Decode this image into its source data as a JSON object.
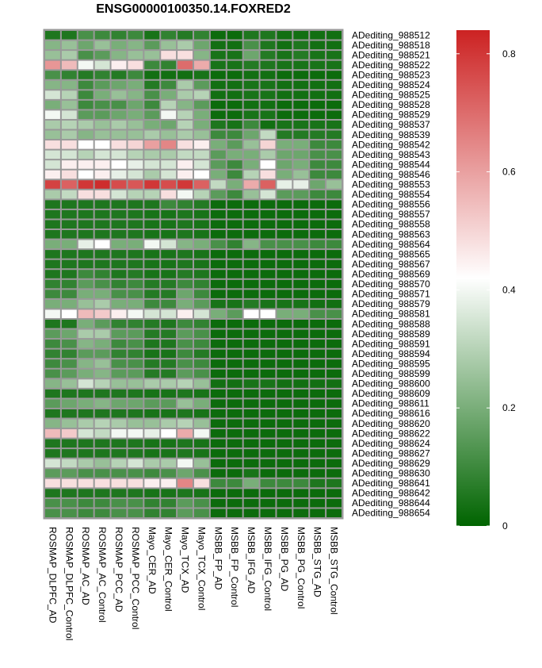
{
  "chart_data": {
    "type": "heatmap",
    "title": "ENSG00000100350.14.FOXRED2",
    "columns": [
      "ROSMAP_DLPFC_AD",
      "ROSMAP_DLPFC_Control",
      "ROSMAP_AC_AD",
      "ROSMAP_AC_Control",
      "ROSMAP_PCC_AD",
      "ROSMAP_PCC_Control",
      "Mayo_CER_AD",
      "Mayo_CER_Control",
      "Mayo_TCX_AD",
      "Mayo_TCX_Control",
      "MSBB_FP_AD",
      "MSBB_FP_Control",
      "MSBB_IFG_AD",
      "MSBB_IFG_Control",
      "MSBB_PG_AD",
      "MSBB_PG_Control",
      "MSBB_STG_AD",
      "MSBB_STG_Control"
    ],
    "rows": [
      "ADediting_988512",
      "ADediting_988518",
      "ADediting_988521",
      "ADediting_988522",
      "ADediting_988523",
      "ADediting_988524",
      "ADediting_988525",
      "ADediting_988528",
      "ADediting_988529",
      "ADediting_988537",
      "ADediting_988539",
      "ADediting_988542",
      "ADediting_988543",
      "ADediting_988544",
      "ADediting_988546",
      "ADediting_988553",
      "ADediting_988554",
      "ADediting_988556",
      "ADediting_988557",
      "ADediting_988558",
      "ADediting_988563",
      "ADediting_988564",
      "ADediting_988565",
      "ADediting_988567",
      "ADediting_988569",
      "ADediting_988570",
      "ADediting_988571",
      "ADediting_988579",
      "ADediting_988581",
      "ADediting_988588",
      "ADediting_988589",
      "ADediting_988591",
      "ADediting_988594",
      "ADediting_988595",
      "ADediting_988599",
      "ADediting_988600",
      "ADediting_988609",
      "ADediting_988611",
      "ADediting_988616",
      "ADediting_988620",
      "ADediting_988622",
      "ADediting_988624",
      "ADediting_988627",
      "ADediting_988629",
      "ADediting_988630",
      "ADediting_988641",
      "ADediting_988642",
      "ADediting_988644",
      "ADediting_988654"
    ],
    "values": [
      [
        0.05,
        0.05,
        0.12,
        0.1,
        0.08,
        0.1,
        0.04,
        0.08,
        0.06,
        0.08,
        0.02,
        0.02,
        0.05,
        0.05,
        0.03,
        0.03,
        0.03,
        0.03
      ],
      [
        0.22,
        0.25,
        0.18,
        0.25,
        0.2,
        0.22,
        0.15,
        0.25,
        0.28,
        0.18,
        0.03,
        0.03,
        0.12,
        0.05,
        0.03,
        0.05,
        0.03,
        0.03
      ],
      [
        0.25,
        0.28,
        0.12,
        0.15,
        0.22,
        0.25,
        0.25,
        0.48,
        0.48,
        0.22,
        0.04,
        0.04,
        0.18,
        0.06,
        0.04,
        0.06,
        0.04,
        0.04
      ],
      [
        0.62,
        0.55,
        0.4,
        0.35,
        0.45,
        0.48,
        0.1,
        0.08,
        0.7,
        0.58,
        0.04,
        0.04,
        0.06,
        0.05,
        0.04,
        0.04,
        0.04,
        0.04
      ],
      [
        0.12,
        0.08,
        0.06,
        0.08,
        0.06,
        0.1,
        0.03,
        0.03,
        0.03,
        0.04,
        0.02,
        0.02,
        0.03,
        0.03,
        0.02,
        0.02,
        0.02,
        0.02
      ],
      [
        0.22,
        0.22,
        0.1,
        0.15,
        0.18,
        0.2,
        0.06,
        0.1,
        0.28,
        0.15,
        0.03,
        0.03,
        0.04,
        0.04,
        0.03,
        0.03,
        0.03,
        0.03
      ],
      [
        0.35,
        0.3,
        0.1,
        0.2,
        0.25,
        0.22,
        0.12,
        0.2,
        0.28,
        0.3,
        0.03,
        0.03,
        0.04,
        0.04,
        0.03,
        0.03,
        0.03,
        0.03
      ],
      [
        0.2,
        0.25,
        0.1,
        0.12,
        0.12,
        0.18,
        0.1,
        0.3,
        0.22,
        0.15,
        0.02,
        0.02,
        0.03,
        0.03,
        0.02,
        0.02,
        0.02,
        0.02
      ],
      [
        0.4,
        0.35,
        0.15,
        0.15,
        0.18,
        0.2,
        0.15,
        0.4,
        0.3,
        0.2,
        0.02,
        0.02,
        0.04,
        0.04,
        0.02,
        0.02,
        0.02,
        0.02
      ],
      [
        0.28,
        0.3,
        0.28,
        0.25,
        0.28,
        0.25,
        0.2,
        0.18,
        0.3,
        0.2,
        0.05,
        0.04,
        0.1,
        0.03,
        0.04,
        0.04,
        0.04,
        0.04
      ],
      [
        0.25,
        0.28,
        0.22,
        0.25,
        0.25,
        0.25,
        0.28,
        0.25,
        0.28,
        0.25,
        0.1,
        0.1,
        0.18,
        0.32,
        0.06,
        0.06,
        0.06,
        0.06
      ],
      [
        0.48,
        0.48,
        0.42,
        0.42,
        0.48,
        0.5,
        0.6,
        0.65,
        0.48,
        0.45,
        0.2,
        0.15,
        0.25,
        0.5,
        0.2,
        0.2,
        0.1,
        0.1
      ],
      [
        0.35,
        0.35,
        0.3,
        0.35,
        0.35,
        0.3,
        0.28,
        0.28,
        0.32,
        0.32,
        0.15,
        0.2,
        0.2,
        0.28,
        0.18,
        0.18,
        0.12,
        0.12
      ],
      [
        0.35,
        0.45,
        0.45,
        0.45,
        0.42,
        0.38,
        0.35,
        0.35,
        0.45,
        0.35,
        0.15,
        0.1,
        0.2,
        0.42,
        0.18,
        0.2,
        0.1,
        0.1
      ],
      [
        0.45,
        0.48,
        0.42,
        0.45,
        0.38,
        0.35,
        0.28,
        0.35,
        0.45,
        0.42,
        0.2,
        0.1,
        0.3,
        0.48,
        0.2,
        0.25,
        0.1,
        0.1
      ],
      [
        0.78,
        0.72,
        0.8,
        0.82,
        0.76,
        0.74,
        0.8,
        0.76,
        0.8,
        0.72,
        0.32,
        0.2,
        0.58,
        0.72,
        0.38,
        0.38,
        0.18,
        0.25
      ],
      [
        0.28,
        0.32,
        0.48,
        0.48,
        0.35,
        0.3,
        0.3,
        0.48,
        0.4,
        0.3,
        0.15,
        0.1,
        0.25,
        0.35,
        0.15,
        0.15,
        0.1,
        0.1
      ],
      [
        0.05,
        0.05,
        0.05,
        0.05,
        0.05,
        0.05,
        0.05,
        0.1,
        0.08,
        0.06,
        0.02,
        0.02,
        0.02,
        0.02,
        0.02,
        0.02,
        0.02,
        0.02
      ],
      [
        0.05,
        0.05,
        0.05,
        0.05,
        0.05,
        0.05,
        0.04,
        0.04,
        0.05,
        0.04,
        0.02,
        0.02,
        0.02,
        0.02,
        0.02,
        0.02,
        0.02,
        0.02
      ],
      [
        0.05,
        0.05,
        0.05,
        0.05,
        0.05,
        0.05,
        0.04,
        0.04,
        0.05,
        0.04,
        0.02,
        0.02,
        0.02,
        0.02,
        0.02,
        0.02,
        0.02,
        0.02
      ],
      [
        0.05,
        0.05,
        0.05,
        0.05,
        0.05,
        0.05,
        0.04,
        0.04,
        0.05,
        0.04,
        0.02,
        0.02,
        0.02,
        0.02,
        0.02,
        0.02,
        0.02,
        0.02
      ],
      [
        0.2,
        0.2,
        0.38,
        0.42,
        0.2,
        0.2,
        0.4,
        0.35,
        0.22,
        0.2,
        0.12,
        0.08,
        0.22,
        0.12,
        0.12,
        0.12,
        0.1,
        0.1
      ],
      [
        0.05,
        0.05,
        0.05,
        0.05,
        0.05,
        0.05,
        0.04,
        0.04,
        0.05,
        0.04,
        0.02,
        0.02,
        0.02,
        0.02,
        0.02,
        0.02,
        0.02,
        0.02
      ],
      [
        0.05,
        0.05,
        0.05,
        0.05,
        0.05,
        0.05,
        0.04,
        0.04,
        0.05,
        0.04,
        0.02,
        0.02,
        0.02,
        0.02,
        0.02,
        0.02,
        0.02,
        0.02
      ],
      [
        0.05,
        0.05,
        0.1,
        0.08,
        0.05,
        0.06,
        0.04,
        0.04,
        0.06,
        0.05,
        0.02,
        0.02,
        0.02,
        0.02,
        0.02,
        0.02,
        0.02,
        0.02
      ],
      [
        0.08,
        0.08,
        0.15,
        0.12,
        0.08,
        0.1,
        0.06,
        0.06,
        0.1,
        0.08,
        0.02,
        0.02,
        0.02,
        0.02,
        0.02,
        0.02,
        0.02,
        0.02
      ],
      [
        0.1,
        0.1,
        0.2,
        0.2,
        0.12,
        0.12,
        0.06,
        0.06,
        0.18,
        0.1,
        0.02,
        0.02,
        0.02,
        0.02,
        0.02,
        0.02,
        0.02,
        0.02
      ],
      [
        0.2,
        0.2,
        0.25,
        0.28,
        0.2,
        0.2,
        0.1,
        0.1,
        0.2,
        0.15,
        0.04,
        0.04,
        0.06,
        0.04,
        0.04,
        0.04,
        0.03,
        0.03
      ],
      [
        0.4,
        0.42,
        0.55,
        0.52,
        0.45,
        0.4,
        0.35,
        0.35,
        0.45,
        0.35,
        0.2,
        0.15,
        0.42,
        0.42,
        0.2,
        0.2,
        0.12,
        0.12
      ],
      [
        0.05,
        0.05,
        0.2,
        0.15,
        0.08,
        0.08,
        0.06,
        0.05,
        0.1,
        0.08,
        0.02,
        0.02,
        0.02,
        0.02,
        0.02,
        0.02,
        0.02,
        0.02
      ],
      [
        0.15,
        0.18,
        0.28,
        0.28,
        0.15,
        0.15,
        0.06,
        0.06,
        0.15,
        0.12,
        0.02,
        0.02,
        0.02,
        0.02,
        0.02,
        0.02,
        0.02,
        0.02
      ],
      [
        0.1,
        0.12,
        0.22,
        0.2,
        0.1,
        0.12,
        0.05,
        0.05,
        0.12,
        0.1,
        0.02,
        0.02,
        0.02,
        0.02,
        0.02,
        0.02,
        0.02,
        0.02
      ],
      [
        0.08,
        0.08,
        0.15,
        0.15,
        0.08,
        0.08,
        0.04,
        0.04,
        0.1,
        0.06,
        0.02,
        0.02,
        0.02,
        0.02,
        0.02,
        0.02,
        0.02,
        0.02
      ],
      [
        0.1,
        0.12,
        0.22,
        0.25,
        0.12,
        0.12,
        0.06,
        0.06,
        0.12,
        0.1,
        0.02,
        0.02,
        0.02,
        0.02,
        0.02,
        0.02,
        0.02,
        0.02
      ],
      [
        0.12,
        0.15,
        0.2,
        0.22,
        0.15,
        0.15,
        0.06,
        0.06,
        0.15,
        0.12,
        0.02,
        0.02,
        0.02,
        0.02,
        0.02,
        0.02,
        0.02,
        0.02
      ],
      [
        0.22,
        0.25,
        0.35,
        0.3,
        0.25,
        0.25,
        0.28,
        0.28,
        0.3,
        0.25,
        0.03,
        0.03,
        0.04,
        0.04,
        0.03,
        0.03,
        0.03,
        0.03
      ],
      [
        0.05,
        0.05,
        0.05,
        0.05,
        0.05,
        0.05,
        0.04,
        0.04,
        0.05,
        0.04,
        0.02,
        0.02,
        0.02,
        0.02,
        0.02,
        0.02,
        0.02,
        0.02
      ],
      [
        0.15,
        0.18,
        0.2,
        0.22,
        0.18,
        0.18,
        0.15,
        0.15,
        0.25,
        0.2,
        0.02,
        0.02,
        0.02,
        0.02,
        0.02,
        0.02,
        0.02,
        0.02
      ],
      [
        0.05,
        0.05,
        0.05,
        0.05,
        0.05,
        0.05,
        0.04,
        0.04,
        0.05,
        0.04,
        0.02,
        0.02,
        0.02,
        0.02,
        0.02,
        0.02,
        0.02,
        0.02
      ],
      [
        0.22,
        0.25,
        0.28,
        0.3,
        0.28,
        0.25,
        0.25,
        0.28,
        0.3,
        0.25,
        0.02,
        0.02,
        0.02,
        0.02,
        0.02,
        0.02,
        0.02,
        0.02
      ],
      [
        0.55,
        0.52,
        0.35,
        0.32,
        0.4,
        0.4,
        0.38,
        0.42,
        0.58,
        0.4,
        0.02,
        0.02,
        0.02,
        0.02,
        0.02,
        0.02,
        0.02,
        0.02
      ],
      [
        0.05,
        0.05,
        0.05,
        0.05,
        0.05,
        0.05,
        0.04,
        0.04,
        0.05,
        0.04,
        0.02,
        0.02,
        0.02,
        0.02,
        0.02,
        0.02,
        0.02,
        0.02
      ],
      [
        0.05,
        0.05,
        0.05,
        0.05,
        0.05,
        0.05,
        0.04,
        0.04,
        0.05,
        0.04,
        0.02,
        0.02,
        0.02,
        0.02,
        0.02,
        0.02,
        0.02,
        0.02
      ],
      [
        0.35,
        0.32,
        0.28,
        0.25,
        0.3,
        0.35,
        0.28,
        0.28,
        0.4,
        0.25,
        0.02,
        0.02,
        0.02,
        0.02,
        0.02,
        0.02,
        0.02,
        0.02
      ],
      [
        0.15,
        0.15,
        0.12,
        0.12,
        0.12,
        0.12,
        0.1,
        0.12,
        0.18,
        0.12,
        0.02,
        0.02,
        0.04,
        0.02,
        0.02,
        0.02,
        0.02,
        0.02
      ],
      [
        0.48,
        0.48,
        0.48,
        0.48,
        0.48,
        0.48,
        0.45,
        0.45,
        0.65,
        0.48,
        0.1,
        0.1,
        0.2,
        0.1,
        0.1,
        0.1,
        0.05,
        0.05
      ],
      [
        0.05,
        0.05,
        0.05,
        0.05,
        0.05,
        0.05,
        0.04,
        0.04,
        0.05,
        0.04,
        0.02,
        0.02,
        0.02,
        0.02,
        0.02,
        0.02,
        0.02,
        0.02
      ],
      [
        0.12,
        0.12,
        0.1,
        0.1,
        0.12,
        0.12,
        0.08,
        0.08,
        0.15,
        0.12,
        0.02,
        0.02,
        0.02,
        0.02,
        0.02,
        0.02,
        0.02,
        0.02
      ],
      [
        0.12,
        0.12,
        0.1,
        0.1,
        0.12,
        0.12,
        0.08,
        0.08,
        0.15,
        0.12,
        0.02,
        0.02,
        0.02,
        0.02,
        0.02,
        0.02,
        0.02,
        0.02
      ]
    ],
    "colorbar": {
      "min": 0,
      "max": 0.84,
      "ticks": [
        0,
        0.2,
        0.4,
        0.6,
        0.8
      ],
      "tick_labels": [
        "0",
        "0.2",
        "0.4",
        "0.6",
        "0.8"
      ],
      "colors": {
        "low": "#006400",
        "mid": "#ffffff",
        "high": "#cc2222"
      },
      "mid_value": 0.42
    },
    "grid_color": "#999999"
  }
}
